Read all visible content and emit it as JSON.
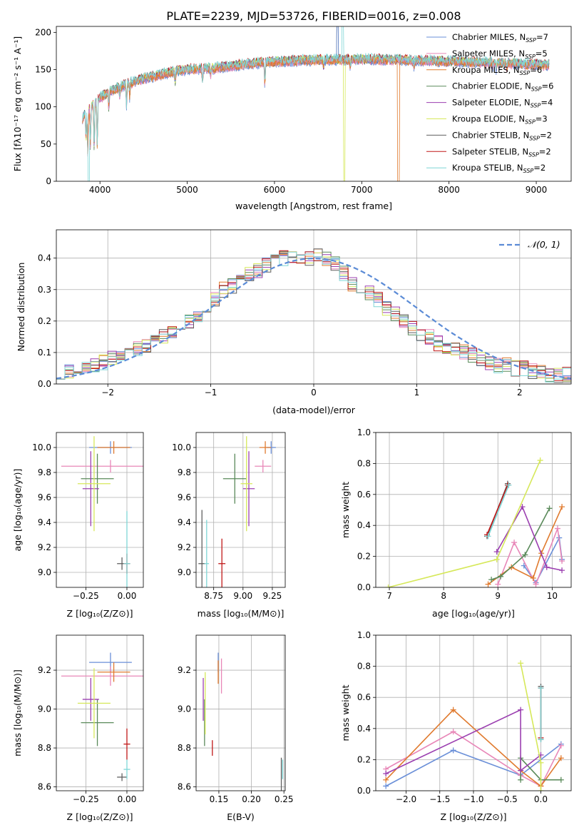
{
  "figure": {
    "title": "PLATE=2239, MJD=53726, FIBERID=0016, z=0.008"
  },
  "colors": {
    "chabrier_miles": "#6a8fd8",
    "salpeter_miles": "#e887b8",
    "kroupa_miles": "#e07a2e",
    "chabrier_elodie": "#5a8a5a",
    "salpeter_elodie": "#9b3fb0",
    "kroupa_elodie": "#d6e85a",
    "chabrier_stelib": "#606060",
    "salpeter_stelib": "#c01818",
    "kroupa_stelib": "#7fd6d6",
    "normal_curve": "#5b8bd6"
  },
  "chart_data": [
    {
      "id": "spectrum",
      "type": "line",
      "xlabel": "wavelength [Angstrom, rest frame]",
      "ylabel": "Flux [fλ10⁻¹⁷ erg cm⁻² s⁻¹ A⁻¹]",
      "xlim": [
        3500,
        9400
      ],
      "ylim": [
        0,
        208
      ],
      "xticks": [
        4000,
        5000,
        6000,
        7000,
        8000,
        9000
      ],
      "yticks": [
        0,
        50,
        100,
        150,
        200
      ],
      "legend_position": "top-right",
      "legend": [
        "Chabrier MILES, N_SSP=7",
        "Salpeter MILES, N_SSP=5",
        "Kroupa MILES, N_SSP=6",
        "Chabrier ELODIE, N_SSP=6",
        "Salpeter ELODIE, N_SSP=4",
        "Kroupa ELODIE, N_SSP=3",
        "Chabrier STELIB, N_SSP=2",
        "Salpeter STELIB, N_SSP=2",
        "Kroupa STELIB, N_SSP=2"
      ],
      "legend_main": [
        "Chabrier MILES, N",
        "Salpeter MILES, N",
        "Kroupa MILES, N",
        "Chabrier ELODIE, N",
        "Salpeter ELODIE, N",
        "Kroupa ELODIE, N",
        "Chabrier STELIB, N",
        "Salpeter STELIB, N",
        "Kroupa STELIB, N"
      ],
      "legend_sub": "SSP",
      "legend_value": [
        "=7",
        "=5",
        "=6",
        "=6",
        "=4",
        "=3",
        "=2",
        "=2",
        "=2"
      ],
      "continuum": [
        [
          3800,
          85
        ],
        [
          3900,
          100
        ],
        [
          4000,
          112
        ],
        [
          4100,
          120
        ],
        [
          4300,
          130
        ],
        [
          4500,
          138
        ],
        [
          4800,
          146
        ],
        [
          5000,
          150
        ],
        [
          5300,
          152
        ],
        [
          5600,
          156
        ],
        [
          5900,
          160
        ],
        [
          6200,
          162
        ],
        [
          6600,
          163
        ],
        [
          7000,
          164
        ],
        [
          7400,
          163
        ],
        [
          7800,
          162
        ],
        [
          8200,
          160
        ],
        [
          8600,
          159
        ],
        [
          9000,
          157
        ],
        [
          9150,
          156
        ]
      ],
      "absorption_lines": [
        [
          3840,
          40
        ],
        [
          3860,
          55
        ],
        [
          3890,
          50
        ],
        [
          3934,
          70
        ],
        [
          3969,
          65
        ],
        [
          4102,
          25
        ],
        [
          4227,
          12
        ],
        [
          4304,
          30
        ],
        [
          4341,
          20
        ],
        [
          4861,
          15
        ],
        [
          5175,
          20
        ],
        [
          5270,
          10
        ],
        [
          5890,
          35
        ],
        [
          6563,
          10
        ],
        [
          6867,
          12
        ],
        [
          7600,
          12
        ],
        [
          8500,
          8
        ],
        [
          8542,
          10
        ],
        [
          8662,
          8
        ]
      ],
      "drops": [
        [
          3870,
          0
        ],
        [
          6800,
          0
        ],
        [
          7420,
          0
        ]
      ],
      "spikes": [
        [
          6720,
          208
        ],
        [
          6780,
          208
        ],
        [
          6870,
          190
        ]
      ]
    },
    {
      "id": "residual_histogram",
      "type": "line",
      "xlabel": "(data-model)/error",
      "ylabel": "Normed distribution",
      "xlim": [
        -2.5,
        2.5
      ],
      "ylim": [
        0,
        0.49
      ],
      "xticks": [
        -2,
        -1,
        0,
        1,
        2
      ],
      "yticks": [
        0.0,
        0.1,
        0.2,
        0.3,
        0.4
      ],
      "grid": true,
      "legend_position": "top-right",
      "legend": [
        "𝒩(0, 1)"
      ],
      "bin_width": 0.1,
      "base_shape": [
        0.04,
        0.04,
        0.05,
        0.05,
        0.06,
        0.07,
        0.08,
        0.09,
        0.1,
        0.11,
        0.12,
        0.13,
        0.15,
        0.16,
        0.18,
        0.2,
        0.22,
        0.25,
        0.27,
        0.3,
        0.31,
        0.33,
        0.35,
        0.36,
        0.38,
        0.39,
        0.4,
        0.4,
        0.39,
        0.4,
        0.41,
        0.4,
        0.38,
        0.35,
        0.32,
        0.3,
        0.29,
        0.27,
        0.24,
        0.22,
        0.2,
        0.18,
        0.16,
        0.15,
        0.13,
        0.12,
        0.11,
        0.1,
        0.09,
        0.08,
        0.07,
        0.06,
        0.06,
        0.05,
        0.05,
        0.04,
        0.04,
        0.03,
        0.03,
        0.03
      ]
    },
    {
      "id": "age_vs_Z",
      "type": "scatter",
      "xlabel": "Z [log₁₀(Z/Z⊙)]",
      "ylabel": "age  [log₁₀(age/yr)]",
      "xlim": [
        -0.43,
        0.1
      ],
      "ylim": [
        8.88,
        10.12
      ],
      "xticks": [
        -0.25,
        0.0
      ],
      "yticks": [
        9.0,
        9.2,
        9.4,
        9.6,
        9.8,
        10.0
      ],
      "grid": true,
      "points": [
        {
          "x": -0.1,
          "y": 10.0,
          "xerr": 0.13,
          "yerr": 0.05
        },
        {
          "x": -0.1,
          "y": 9.85,
          "xerr": 0.3,
          "yerr": 0.05
        },
        {
          "x": -0.08,
          "y": 10.0,
          "xerr": 0.1,
          "yerr": 0.05
        },
        {
          "x": -0.18,
          "y": 9.75,
          "xerr": 0.1,
          "yerr": 0.2
        },
        {
          "x": -0.22,
          "y": 9.67,
          "xerr": 0.05,
          "yerr": 0.3
        },
        {
          "x": -0.2,
          "y": 9.71,
          "xerr": 0.1,
          "yerr": 0.38
        },
        {
          "x": -0.03,
          "y": 9.07,
          "xerr": 0.03,
          "yerr": 0.05
        },
        {
          "x": 0.0,
          "y": 9.07,
          "xerr": 0.02,
          "yerr": 0.08
        },
        {
          "x": 0.0,
          "y": 9.07,
          "xerr": 0.02,
          "yerr": 0.42
        }
      ]
    },
    {
      "id": "age_vs_mass",
      "type": "scatter",
      "xlabel": "mass [log₁₀(M/M⊙)]",
      "ylabel": "",
      "xlim": [
        8.6,
        9.36
      ],
      "ylim": [
        8.88,
        10.12
      ],
      "xticks": [
        8.75,
        9.0,
        9.25
      ],
      "yticks": [
        9.0,
        9.2,
        9.4,
        9.6,
        9.8,
        10.0
      ],
      "grid": true,
      "points": [
        {
          "x": 9.24,
          "y": 10.0,
          "xerr": 0.04,
          "yerr": 0.05
        },
        {
          "x": 9.17,
          "y": 9.85,
          "xerr": 0.07,
          "yerr": 0.05
        },
        {
          "x": 9.19,
          "y": 10.0,
          "xerr": 0.05,
          "yerr": 0.05
        },
        {
          "x": 8.93,
          "y": 9.75,
          "xerr": 0.1,
          "yerr": 0.2
        },
        {
          "x": 9.05,
          "y": 9.67,
          "xerr": 0.05,
          "yerr": 0.3
        },
        {
          "x": 9.03,
          "y": 9.71,
          "xerr": 0.05,
          "yerr": 0.38
        },
        {
          "x": 8.65,
          "y": 9.07,
          "xerr": 0.03,
          "yerr": 0.43
        },
        {
          "x": 8.82,
          "y": 9.07,
          "xerr": 0.03,
          "yerr": 0.2
        },
        {
          "x": 8.69,
          "y": 9.07,
          "xerr": 0.02,
          "yerr": 0.35
        }
      ]
    },
    {
      "id": "mass_weight_vs_age",
      "type": "line",
      "xlabel": "age  [log₁₀(age/yr)]",
      "ylabel": "mass weight",
      "xlim": [
        6.75,
        10.35
      ],
      "ylim": [
        0,
        1
      ],
      "xticks": [
        7,
        8,
        9,
        10
      ],
      "yticks": [
        0.0,
        0.2,
        0.4,
        0.6,
        0.8,
        1.0
      ],
      "grid": true,
      "series": [
        {
          "x": [
            9.48,
            9.7,
            10.13,
            10.18
          ],
          "y": [
            0.14,
            0.03,
            0.32,
            0.18
          ]
        },
        {
          "x": [
            9.0,
            9.3,
            9.7,
            10.1,
            10.18
          ],
          "y": [
            0.02,
            0.29,
            0.02,
            0.38,
            0.17
          ]
        },
        {
          "x": [
            8.82,
            9.25,
            9.65,
            9.8,
            10.18
          ],
          "y": [
            0.02,
            0.13,
            0.06,
            0.22,
            0.52
          ]
        },
        {
          "x": [
            8.88,
            9.05,
            9.5,
            9.95
          ],
          "y": [
            0.05,
            0.07,
            0.21,
            0.51
          ]
        },
        {
          "x": [
            8.98,
            9.45,
            9.9,
            10.18
          ],
          "y": [
            0.23,
            0.52,
            0.13,
            0.11
          ]
        },
        {
          "x": [
            6.98,
            8.98,
            9.78
          ],
          "y": [
            0.0,
            0.18,
            0.82
          ]
        },
        {
          "x": [
            8.8,
            9.18
          ],
          "y": [
            0.33,
            0.67
          ]
        },
        {
          "x": [
            8.8,
            9.18
          ],
          "y": [
            0.34,
            0.66
          ]
        },
        {
          "x": [
            8.82,
            9.2
          ],
          "y": [
            0.33,
            0.66
          ]
        }
      ]
    },
    {
      "id": "mass_vs_Z",
      "type": "scatter",
      "xlabel": "Z [log₁₀(Z/Z⊙)]",
      "ylabel": "mass [log₁₀(M/M⊙)]",
      "xlim": [
        -0.43,
        0.1
      ],
      "ylim": [
        8.58,
        9.38
      ],
      "xticks": [
        -0.25,
        0.0
      ],
      "yticks": [
        8.6,
        8.8,
        9.0,
        9.2
      ],
      "grid": true,
      "points": [
        {
          "x": -0.1,
          "y": 9.24,
          "xerr": 0.13,
          "yerr": 0.05
        },
        {
          "x": -0.1,
          "y": 9.17,
          "xerr": 0.3,
          "yerr": 0.05
        },
        {
          "x": -0.08,
          "y": 9.19,
          "xerr": 0.1,
          "yerr": 0.05
        },
        {
          "x": -0.18,
          "y": 8.93,
          "xerr": 0.1,
          "yerr": 0.12
        },
        {
          "x": -0.22,
          "y": 9.05,
          "xerr": 0.05,
          "yerr": 0.11
        },
        {
          "x": -0.2,
          "y": 9.03,
          "xerr": 0.1,
          "yerr": 0.18
        },
        {
          "x": -0.03,
          "y": 8.65,
          "xerr": 0.03,
          "yerr": 0.02
        },
        {
          "x": 0.0,
          "y": 8.82,
          "xerr": 0.02,
          "yerr": 0.08
        },
        {
          "x": 0.0,
          "y": 8.69,
          "xerr": 0.02,
          "yerr": 0.05
        }
      ]
    },
    {
      "id": "mass_vs_ebv",
      "type": "scatter",
      "xlabel": "E(B-V)",
      "ylabel": "",
      "xlim": [
        0.115,
        0.252
      ],
      "ylim": [
        8.58,
        9.38
      ],
      "xticks": [
        0.15,
        0.2,
        0.25
      ],
      "yticks": [
        8.6,
        8.8,
        9.0,
        9.2
      ],
      "grid": true,
      "points": [
        {
          "x": 0.149,
          "y": 9.24,
          "xerr": 0.0,
          "yerr": 0.05
        },
        {
          "x": 0.154,
          "y": 9.17,
          "xerr": 0.0,
          "yerr": 0.09
        },
        {
          "x": 0.149,
          "y": 9.19,
          "xerr": 0.0,
          "yerr": 0.06
        },
        {
          "x": 0.128,
          "y": 8.93,
          "xerr": 0.0,
          "yerr": 0.12
        },
        {
          "x": 0.126,
          "y": 9.05,
          "xerr": 0.0,
          "yerr": 0.11
        },
        {
          "x": 0.129,
          "y": 9.03,
          "xerr": 0.0,
          "yerr": 0.16
        },
        {
          "x": 0.246,
          "y": 8.65,
          "xerr": 0.0,
          "yerr": 0.1
        },
        {
          "x": 0.14,
          "y": 8.8,
          "xerr": 0.0,
          "yerr": 0.04
        },
        {
          "x": 0.248,
          "y": 8.69,
          "xerr": 0.0,
          "yerr": 0.05
        }
      ]
    },
    {
      "id": "mass_weight_vs_Z",
      "type": "line",
      "xlabel": "Z [log₁₀(Z/Z⊙)]",
      "ylabel": "mass weight",
      "xlim": [
        -2.45,
        0.45
      ],
      "ylim": [
        0,
        1
      ],
      "xticks": [
        -2.0,
        -1.5,
        -1.0,
        -0.5,
        0.0
      ],
      "yticks": [
        0.0,
        0.2,
        0.4,
        0.6,
        0.8,
        1.0
      ],
      "grid": true,
      "series": [
        {
          "x": [
            -2.3,
            -1.3,
            -0.3,
            0.3
          ],
          "y": [
            0.03,
            0.26,
            0.1,
            0.3
          ]
        },
        {
          "x": [
            -2.3,
            -1.3,
            -0.3,
            0.0,
            0.3
          ],
          "y": [
            0.14,
            0.38,
            0.1,
            0.03,
            0.29
          ]
        },
        {
          "x": [
            -2.3,
            -1.3,
            -0.3,
            0.0,
            0.3
          ],
          "y": [
            0.07,
            0.52,
            0.13,
            0.03,
            0.21
          ]
        },
        {
          "x": [
            -0.3,
            -0.3,
            0.0,
            0.3
          ],
          "y": [
            0.07,
            0.21,
            0.07,
            0.07
          ]
        },
        {
          "x": [
            -2.3,
            -0.3,
            -0.3,
            0.0
          ],
          "y": [
            0.11,
            0.52,
            0.13,
            0.23
          ]
        },
        {
          "x": [
            -0.3,
            0.0,
            0.0
          ],
          "y": [
            0.82,
            0.18,
            0.0
          ]
        },
        {
          "x": [
            0.0,
            0.0
          ],
          "y": [
            0.33,
            0.67
          ]
        },
        {
          "x": [
            0.0,
            0.0
          ],
          "y": [
            0.34,
            0.66
          ]
        },
        {
          "x": [
            0.0,
            0.0
          ],
          "y": [
            0.33,
            0.66
          ]
        }
      ]
    }
  ]
}
